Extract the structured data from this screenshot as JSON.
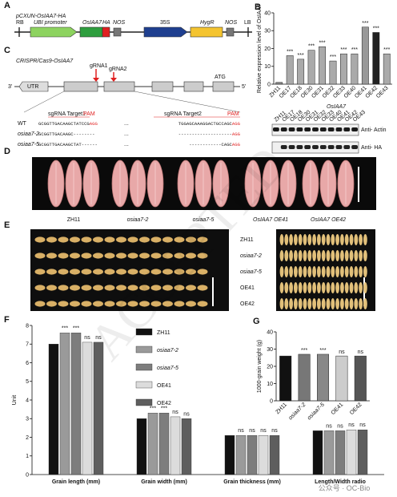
{
  "panels": {
    "A": {
      "label": "A",
      "title": "pCXUN-OsIAA7-HA",
      "parts": [
        "RB",
        "UBI promoter",
        "OsIAA7",
        "HA",
        "NOS",
        "35S",
        "HygR",
        "NOS",
        "LB"
      ]
    },
    "C": {
      "label": "C",
      "title": "CRISPR/Cas9-OsIAA7",
      "gene": {
        "left_end": "3'",
        "utr": "UTR",
        "start": "ATG",
        "right_end": "5'",
        "guides": [
          "gRNA1",
          "gRNA2"
        ]
      },
      "targets": [
        "sgRNA Target1",
        "PAM",
        "sgRNA Target2",
        "PAM"
      ],
      "sequences": [
        {
          "name": "WT",
          "target1": "GCGGTTGACAAGCTATCCG",
          "pam1": "AGG",
          "gap": "...",
          "target2": "TGGAGCAAAGGACTGCCAGC",
          "pam2": "AGG"
        },
        {
          "name": "osiaa7-2",
          "target1": "GCGGTTGACAAGC--------",
          "gap": "...",
          "target2": "--------------------",
          "pam2": "AGG"
        },
        {
          "name": "osiaa7-5",
          "target1": "GCGGTTGACAAGCTAT------",
          "gap": "...",
          "target2": "------------CAGC",
          "pam2": "AGG"
        }
      ]
    },
    "D": {
      "label": "D",
      "lines": [
        "ZH11",
        "osiaa7-2",
        "osiaa7-5",
        "OsIAA7 OE41",
        "OsIAA7 OE42"
      ]
    },
    "E": {
      "label": "E",
      "lines": [
        "ZH11",
        "osiaa7-2",
        "osiaa7-5",
        "OE41",
        "OE42"
      ]
    },
    "blot": {
      "group_label": "OsIAA7",
      "rows": [
        "Anti- Actin",
        "Anti- HA"
      ]
    },
    "watermark": "ACCEPTED",
    "footer": "公众号 · OC-Bio"
  },
  "chart_data": [
    {
      "panel": "B",
      "type": "bar",
      "ylabel": "Relative expression level of OsIAA7",
      "categories": [
        "ZH11",
        "OE17",
        "OE18",
        "OE30",
        "OE31",
        "OE32",
        "OE33",
        "OE40",
        "OE41",
        "OE42",
        "OE43"
      ],
      "values": [
        1,
        16,
        14,
        19,
        21,
        13,
        17,
        17,
        32,
        29,
        17
      ],
      "significance": [
        null,
        "***",
        "***",
        "***",
        "***",
        "***",
        "***",
        "***",
        "***",
        "***",
        "***"
      ],
      "colors": [
        "#888888",
        "#aaaaaa",
        "#aaaaaa",
        "#aaaaaa",
        "#aaaaaa",
        "#aaaaaa",
        "#aaaaaa",
        "#aaaaaa",
        "#999999",
        "#222222",
        "#aaaaaa"
      ],
      "ylim": [
        0,
        40
      ],
      "yticks": [
        0,
        10,
        20,
        30,
        40
      ]
    },
    {
      "panel": "F",
      "type": "grouped_bar",
      "ylabel": "Unit",
      "categories": [
        "Grain length (mm)",
        "Grain width (mm)",
        "Grain thickness (mm)",
        "Length/Width radio"
      ],
      "series": [
        {
          "name": "ZH11",
          "color": "#111111",
          "values": [
            7.0,
            3.0,
            2.1,
            2.35
          ],
          "significance": [
            null,
            null,
            null,
            null
          ]
        },
        {
          "name": "osiaa7-2",
          "color": "#9a9a9a",
          "values": [
            7.6,
            3.3,
            2.1,
            2.35
          ],
          "significance": [
            "***",
            "***",
            "ns",
            "ns"
          ]
        },
        {
          "name": "osiaa7-5",
          "color": "#7d7d7d",
          "values": [
            7.6,
            3.3,
            2.1,
            2.35
          ],
          "significance": [
            "***",
            "***",
            "ns",
            "ns"
          ]
        },
        {
          "name": "OE41",
          "color": "#dcdcdc",
          "values": [
            7.1,
            3.1,
            2.1,
            2.4
          ],
          "significance": [
            "ns",
            "ns",
            "ns",
            "ns"
          ]
        },
        {
          "name": "OE42",
          "color": "#5e5e5e",
          "values": [
            7.1,
            3.0,
            2.1,
            2.4
          ],
          "significance": [
            "ns",
            "ns",
            "ns",
            "ns"
          ]
        }
      ],
      "ylim": [
        0,
        8
      ],
      "yticks": [
        0,
        1,
        2,
        3,
        4,
        5,
        6,
        7,
        8
      ],
      "legend": "upper center"
    },
    {
      "panel": "G",
      "type": "bar",
      "ylabel": "1000-grain weight (g)",
      "categories": [
        "ZH11",
        "osiaa7-2",
        "osiaa7-5",
        "OE41",
        "OE42"
      ],
      "values": [
        26,
        27,
        27,
        26,
        26
      ],
      "significance": [
        null,
        "***",
        "***",
        "ns",
        "ns"
      ],
      "colors": [
        "#111111",
        "#777777",
        "#888888",
        "#cccccc",
        "#555555"
      ],
      "ylim": [
        0,
        40
      ],
      "yticks": [
        0,
        10,
        20,
        30,
        40
      ]
    }
  ]
}
